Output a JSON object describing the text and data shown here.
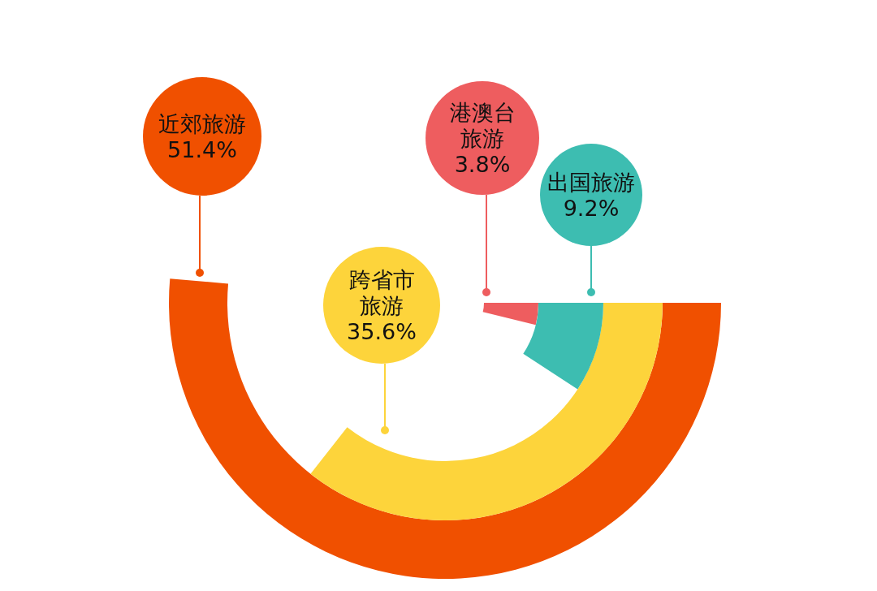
{
  "chart_data": {
    "type": "other",
    "categories": [
      "近郊旅游",
      "跨省市旅游",
      "出国旅游",
      "港澳台旅游"
    ],
    "values": [
      51.4,
      35.6,
      9.2,
      3.8
    ],
    "colors": [
      "#f05000",
      "#fdd43b",
      "#3dbdb1",
      "#ee5d5f"
    ],
    "value_labels": [
      "51.4%",
      "35.6%",
      "9.2%",
      "3.8%"
    ]
  }
}
